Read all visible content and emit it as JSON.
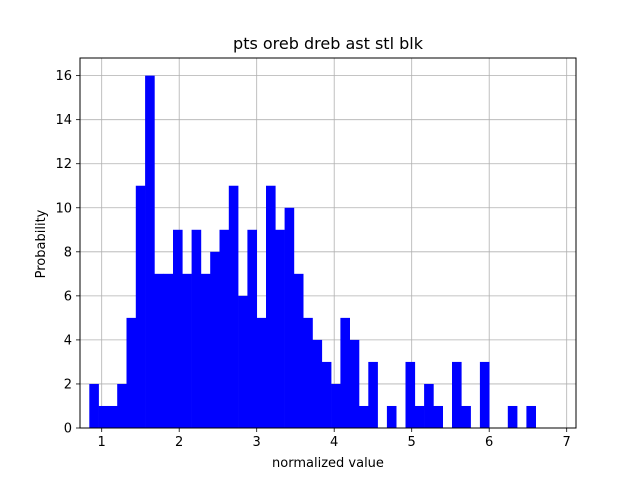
{
  "chart_data": {
    "type": "bar",
    "title": "pts oreb dreb ast stl blk",
    "xlabel": "normalized value",
    "ylabel": "Probability",
    "xlim": [
      0.72,
      7.12
    ],
    "ylim": [
      0,
      16.8
    ],
    "xticks": [
      1,
      2,
      3,
      4,
      5,
      6,
      7
    ],
    "yticks": [
      0,
      2,
      4,
      6,
      8,
      10,
      12,
      14,
      16
    ],
    "grid": true,
    "bar_color": "#0000ff",
    "bin_width": 0.12,
    "bin_start": 0.84,
    "values": [
      2,
      1,
      1,
      2,
      5,
      11,
      16,
      7,
      7,
      9,
      7,
      9,
      7,
      8,
      9,
      11,
      6,
      9,
      5,
      11,
      9,
      10,
      7,
      5,
      4,
      3,
      2,
      5,
      4,
      1,
      3,
      0,
      1,
      0,
      3,
      1,
      2,
      1,
      0,
      3,
      1,
      0,
      3,
      0,
      0,
      1,
      0,
      1,
      0,
      0
    ]
  }
}
